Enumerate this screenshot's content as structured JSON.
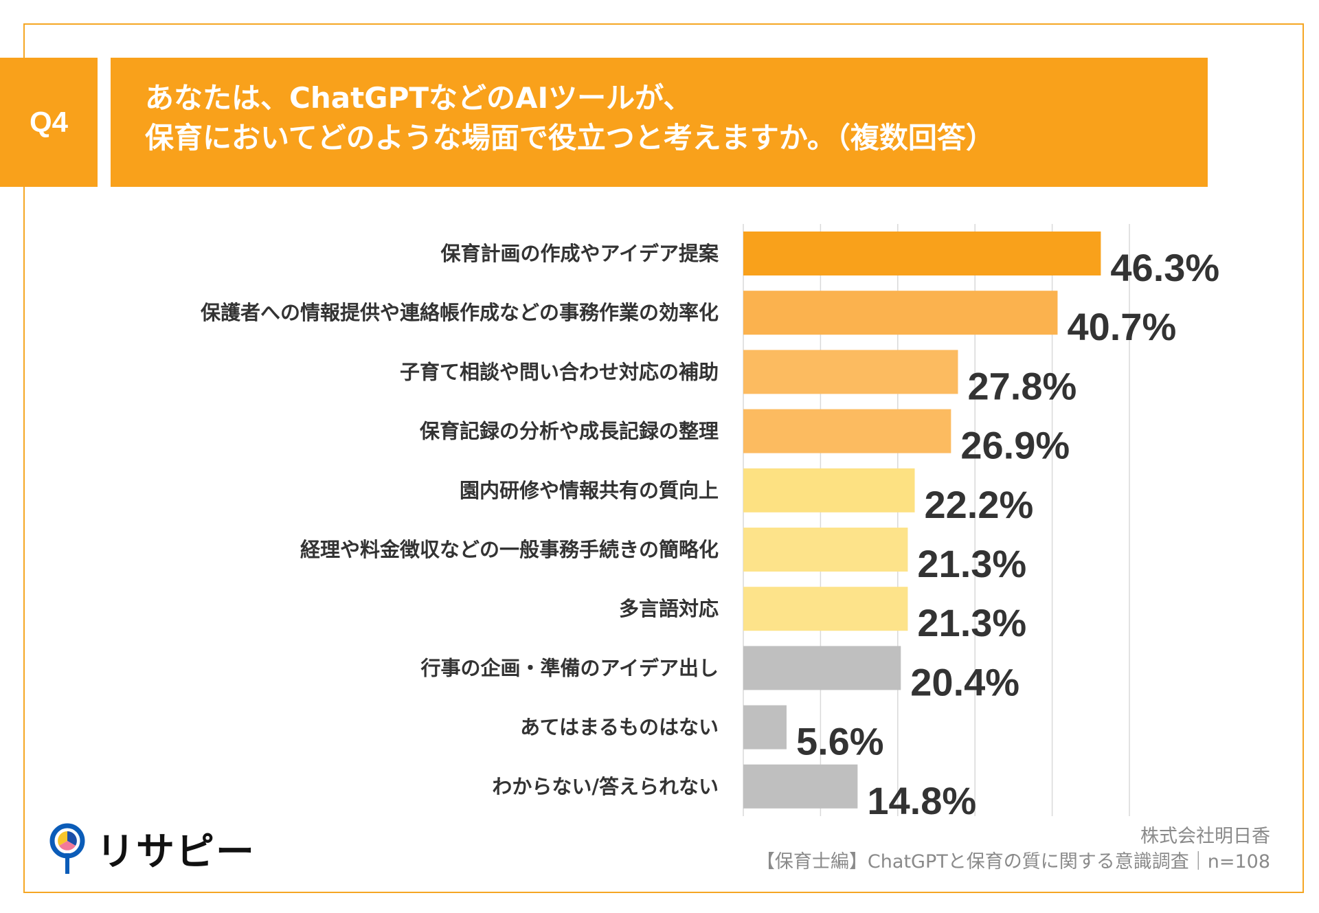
{
  "header": {
    "badge": "Q4",
    "title_line1": "あなたは、ChatGPTなどのAIツールが、",
    "title_line2": "保育においてどのような場面で役立つと考えますか。（複数回答）",
    "color": "#f9a11b"
  },
  "chart_data": {
    "type": "bar",
    "orientation": "horizontal",
    "categories": [
      "保育計画の作成やアイデア提案",
      "保護者への情報提供や連絡帳作成などの事務作業の効率化",
      "子育て相談や問い合わせ対応の補助",
      "保育記録の分析や成長記録の整理",
      "園内研修や情報共有の質向上",
      "経理や料金徴収などの一般事務手続きの簡略化",
      "多言語対応",
      "行事の企画・準備のアイデア出し",
      "あてはまるものはない",
      "わからない/答えられない"
    ],
    "values": [
      46.3,
      40.7,
      27.8,
      26.9,
      22.2,
      21.3,
      21.3,
      20.4,
      5.6,
      14.8
    ],
    "value_labels": [
      "46.3%",
      "40.7%",
      "27.8%",
      "26.9%",
      "22.2%",
      "21.3%",
      "21.3%",
      "20.4%",
      "5.6%",
      "14.8%"
    ],
    "colors": [
      "#f9a11b",
      "#fbb24e",
      "#fcbb60",
      "#fcbb60",
      "#fde182",
      "#fde38a",
      "#fde38a",
      "#bfbfbf",
      "#bfbfbf",
      "#bfbfbf"
    ],
    "xlim": [
      0,
      50
    ],
    "grid": true
  },
  "footer": {
    "company": "株式会社明日香",
    "source": "【保育士編】ChatGPTと保育の質に関する意識調査｜n=108",
    "logo_text": "リサピー"
  }
}
